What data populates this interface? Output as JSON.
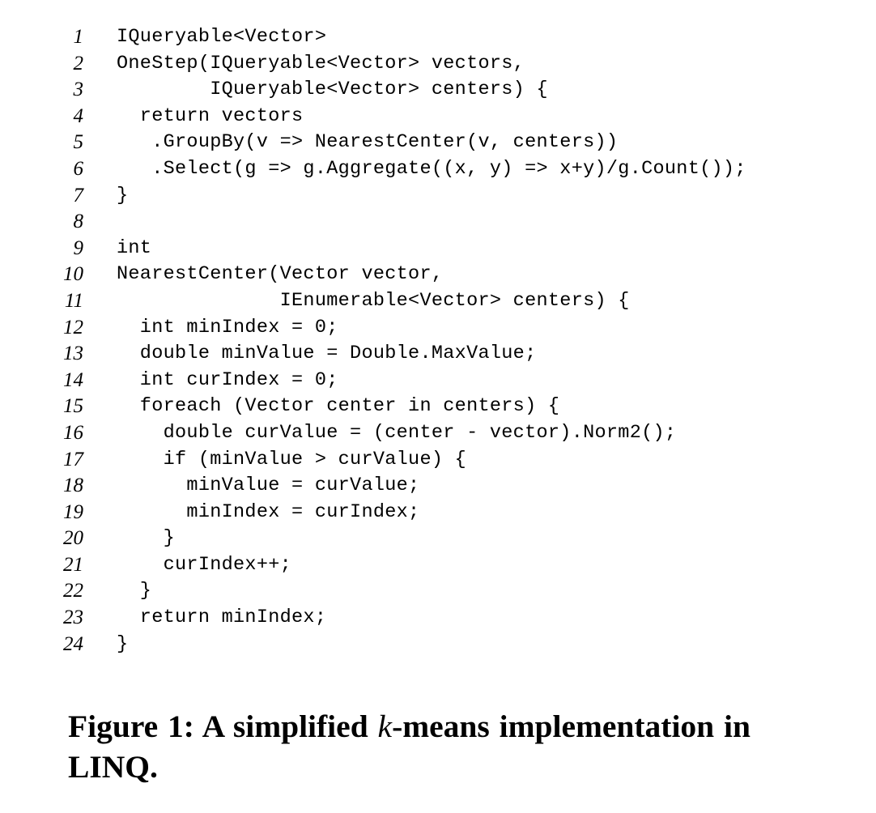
{
  "code": {
    "lines": [
      {
        "num": "1",
        "text": "IQueryable<Vector>"
      },
      {
        "num": "2",
        "text": "OneStep(IQueryable<Vector> vectors,"
      },
      {
        "num": "3",
        "text": "        IQueryable<Vector> centers) {"
      },
      {
        "num": "4",
        "text": "  return vectors"
      },
      {
        "num": "5",
        "text": "   .GroupBy(v => NearestCenter(v, centers))"
      },
      {
        "num": "6",
        "text": "   .Select(g => g.Aggregate((x, y) => x+y)/g.Count());"
      },
      {
        "num": "7",
        "text": "}"
      },
      {
        "num": "8",
        "text": ""
      },
      {
        "num": "9",
        "text": "int"
      },
      {
        "num": "10",
        "text": "NearestCenter(Vector vector,"
      },
      {
        "num": "11",
        "text": "              IEnumerable<Vector> centers) {"
      },
      {
        "num": "12",
        "text": "  int minIndex = 0;"
      },
      {
        "num": "13",
        "text": "  double minValue = Double.MaxValue;"
      },
      {
        "num": "14",
        "text": "  int curIndex = 0;"
      },
      {
        "num": "15",
        "text": "  foreach (Vector center in centers) {"
      },
      {
        "num": "16",
        "text": "    double curValue = (center - vector).Norm2();"
      },
      {
        "num": "17",
        "text": "    if (minValue > curValue) {"
      },
      {
        "num": "18",
        "text": "      minValue = curValue;"
      },
      {
        "num": "19",
        "text": "      minIndex = curIndex;"
      },
      {
        "num": "20",
        "text": "    }"
      },
      {
        "num": "21",
        "text": "    curIndex++;"
      },
      {
        "num": "22",
        "text": "  }"
      },
      {
        "num": "23",
        "text": "  return minIndex;"
      },
      {
        "num": "24",
        "text": "}"
      }
    ]
  },
  "caption": {
    "prefix": "Figure 1:  A simplified ",
    "k": "k",
    "suffix": "-means implementation in LINQ."
  }
}
